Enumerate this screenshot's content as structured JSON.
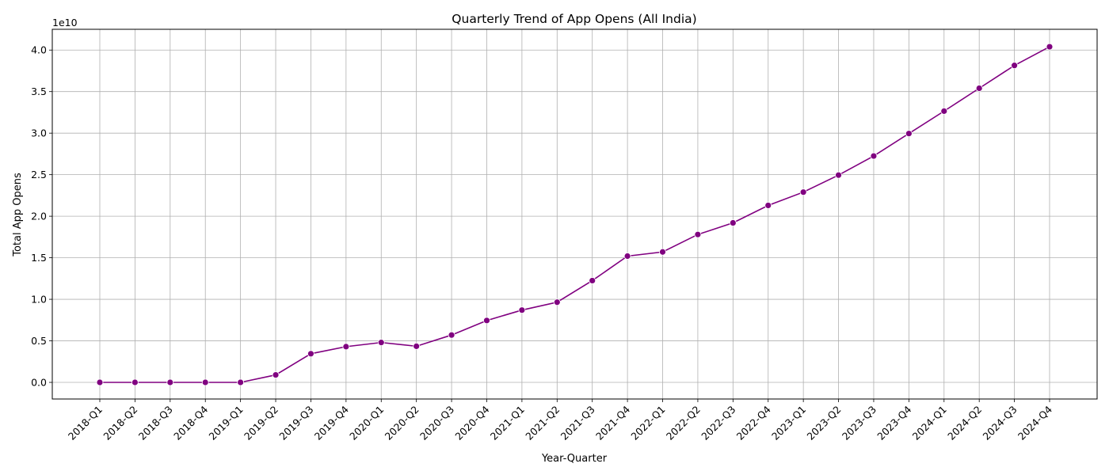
{
  "chart_data": {
    "type": "line",
    "title": "Quarterly Trend of App Opens (All India)",
    "xlabel": "Year-Quarter",
    "ylabel": "Total App Opens",
    "offset_text": "1e10",
    "grid": true,
    "line_color": "#800080",
    "ylim": [
      -2.0,
      42.5
    ],
    "y_unit_note": "",
    "yticks": [
      {
        "value": 0.0,
        "label": "0.0"
      },
      {
        "value": 5.0,
        "label": "0.5"
      },
      {
        "value": 10.0,
        "label": "1.0"
      },
      {
        "value": 15.0,
        "label": "1.5"
      },
      {
        "value": 20.0,
        "label": "2.0"
      },
      {
        "value": 25.0,
        "label": "2.5"
      },
      {
        "value": 30.0,
        "label": "3.0"
      },
      {
        "value": 35.0,
        "label": "3.5"
      },
      {
        "value": 40.0,
        "label": "4.0"
      }
    ],
    "categories": [
      "2018-Q1",
      "2018-Q2",
      "2018-Q3",
      "2018-Q4",
      "2019-Q1",
      "2019-Q2",
      "2019-Q3",
      "2019-Q4",
      "2020-Q1",
      "2020-Q2",
      "2020-Q3",
      "2020-Q4",
      "2021-Q1",
      "2021-Q2",
      "2021-Q3",
      "2021-Q4",
      "2022-Q1",
      "2022-Q2",
      "2022-Q3",
      "2022-Q4",
      "2023-Q1",
      "2023-Q2",
      "2023-Q3",
      "2023-Q4",
      "2024-Q1",
      "2024-Q2",
      "2024-Q3",
      "2024-Q4"
    ],
    "values": [
      0.0,
      0.0,
      0.0,
      0.0,
      0.0,
      0.9,
      3.45,
      4.3,
      4.8,
      4.35,
      5.7,
      7.45,
      8.7,
      9.65,
      12.25,
      15.2,
      15.7,
      17.8,
      19.2,
      21.3,
      22.9,
      24.95,
      27.25,
      29.95,
      32.65,
      35.4,
      38.15,
      40.4
    ]
  }
}
